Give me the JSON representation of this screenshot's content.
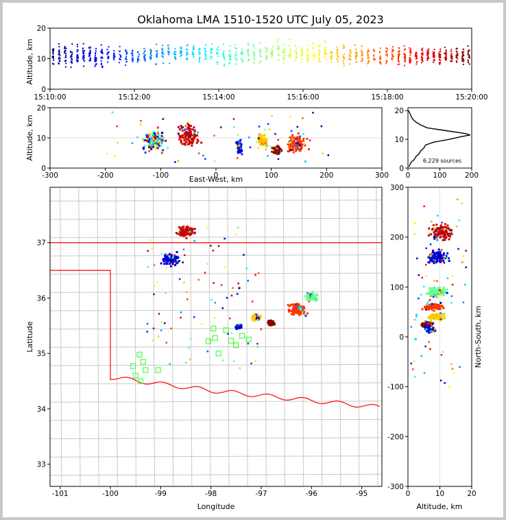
{
  "figure": {
    "title": "Oklahoma LMA 1510-1520 UTC July 05, 2023",
    "background": "#ffffff",
    "frame_color": "#c8c8c8"
  },
  "chart_data": [
    {
      "id": "time-height",
      "type": "scatter",
      "ylabel": "Altitude, km",
      "xlabel": "",
      "xlim": [
        "15:10:00",
        "15:20:00"
      ],
      "ylim": [
        0,
        20
      ],
      "x_ticks": [
        "15:10:00",
        "15:12:00",
        "15:14:00",
        "15:16:00",
        "15:18:00",
        "15:20:00"
      ],
      "y_ticks": [
        0,
        10,
        20
      ],
      "color_by": "time",
      "colormap": "jet",
      "series": [
        {
          "time_min_start": 0.0,
          "time_min_end": 1.3,
          "alt_center": 11,
          "alt_spread": 6,
          "density": "high"
        },
        {
          "time_min_start": 1.3,
          "time_min_end": 2.6,
          "alt_center": 11,
          "alt_spread": 5,
          "density": "medium"
        },
        {
          "time_min_start": 2.6,
          "time_min_end": 3.9,
          "alt_center": 12,
          "alt_spread": 5,
          "density": "medium"
        },
        {
          "time_min_start": 3.9,
          "time_min_end": 5.2,
          "alt_center": 11,
          "alt_spread": 6,
          "density": "medium"
        },
        {
          "time_min_start": 5.2,
          "time_min_end": 6.6,
          "alt_center": 12,
          "alt_spread": 6,
          "density": "medium"
        },
        {
          "time_min_start": 6.6,
          "time_min_end": 8.2,
          "alt_center": 11,
          "alt_spread": 5,
          "density": "medium"
        },
        {
          "time_min_start": 8.2,
          "time_min_end": 10.0,
          "alt_center": 11,
          "alt_spread": 5,
          "density": "high"
        }
      ]
    },
    {
      "id": "ew-height",
      "type": "scatter",
      "xlabel": "East-West, km",
      "ylabel": "Altitude, km",
      "xlim": [
        -300,
        300
      ],
      "ylim": [
        0,
        20
      ],
      "x_ticks": [
        -300,
        -200,
        -100,
        0,
        100,
        200,
        300
      ],
      "y_ticks": [
        0,
        10,
        20
      ],
      "clusters": [
        {
          "x": -110,
          "x_spread": 25,
          "alt": 9,
          "alt_spread": 5,
          "color": "mixed"
        },
        {
          "x": -50,
          "x_spread": 20,
          "alt": 11,
          "alt_spread": 5,
          "color": "#cc0000"
        },
        {
          "x": 42,
          "x_spread": 5,
          "alt": 7,
          "alt_spread": 3,
          "color": "#0000dd"
        },
        {
          "x": 85,
          "x_spread": 10,
          "alt": 9,
          "alt_spread": 3,
          "color": "#ffcc00"
        },
        {
          "x": 110,
          "x_spread": 8,
          "alt": 6,
          "alt_spread": 2,
          "color": "#880000"
        },
        {
          "x": 145,
          "x_spread": 20,
          "alt": 8,
          "alt_spread": 4,
          "color": "#ff3300"
        }
      ]
    },
    {
      "id": "altitude-histogram",
      "type": "line",
      "annotation": "6,229 sources",
      "xlim": [
        0,
        200
      ],
      "ylim": [
        0,
        21
      ],
      "x_ticks": [
        0,
        100,
        200
      ],
      "y_ticks": [
        0,
        10,
        20
      ],
      "profile": [
        {
          "alt": 0.5,
          "count": 3
        },
        {
          "alt": 2,
          "count": 10
        },
        {
          "alt": 3,
          "count": 20
        },
        {
          "alt": 4,
          "count": 25
        },
        {
          "alt": 5,
          "count": 35
        },
        {
          "alt": 6,
          "count": 40
        },
        {
          "alt": 7,
          "count": 50
        },
        {
          "alt": 8,
          "count": 55
        },
        {
          "alt": 9,
          "count": 80
        },
        {
          "alt": 10,
          "count": 130
        },
        {
          "alt": 11,
          "count": 170
        },
        {
          "alt": 11.5,
          "count": 195
        },
        {
          "alt": 12,
          "count": 180
        },
        {
          "alt": 13,
          "count": 120
        },
        {
          "alt": 14,
          "count": 60
        },
        {
          "alt": 15,
          "count": 40
        },
        {
          "alt": 16,
          "count": 25
        },
        {
          "alt": 17,
          "count": 15
        },
        {
          "alt": 18,
          "count": 10
        },
        {
          "alt": 19,
          "count": 6
        },
        {
          "alt": 20,
          "count": 2
        }
      ]
    },
    {
      "id": "plan-view",
      "type": "scatter",
      "xlabel": "Longitude",
      "ylabel": "Latitude",
      "xlim": [
        -101.2,
        -94.6
      ],
      "ylim": [
        32.6,
        38.0
      ],
      "x_ticks": [
        -101,
        -100,
        -99,
        -98,
        -97,
        -96,
        -95
      ],
      "y_ticks": [
        33,
        34,
        35,
        36,
        37
      ],
      "state_border_color": "#ff0000",
      "county_color": "#c8c8c8",
      "clusters": [
        {
          "lon": -98.5,
          "lat": 37.2,
          "spread": 0.15,
          "color": "#cc0000"
        },
        {
          "lon": -98.8,
          "lat": 36.7,
          "spread": 0.15,
          "color": "#0000dd"
        },
        {
          "lon": -97.45,
          "lat": 35.48,
          "spread": 0.05,
          "color": "#0000dd"
        },
        {
          "lon": -97.1,
          "lat": 35.65,
          "spread": 0.08,
          "color": "#ffcc00"
        },
        {
          "lon": -96.8,
          "lat": 35.55,
          "spread": 0.06,
          "color": "#880000"
        },
        {
          "lon": -96.3,
          "lat": 35.8,
          "spread": 0.15,
          "color": "#ff3300"
        },
        {
          "lon": -96.0,
          "lat": 36.02,
          "spread": 0.1,
          "color": "#66ff88"
        }
      ],
      "stations": [
        {
          "lon": -99.55,
          "lat": 34.77
        },
        {
          "lon": -99.5,
          "lat": 34.6
        },
        {
          "lon": -99.4,
          "lat": 34.5
        },
        {
          "lon": -99.35,
          "lat": 34.85
        },
        {
          "lon": -99.3,
          "lat": 34.7
        },
        {
          "lon": -99.42,
          "lat": 34.98
        },
        {
          "lon": -99.05,
          "lat": 34.7
        },
        {
          "lon": -98.05,
          "lat": 35.22
        },
        {
          "lon": -97.95,
          "lat": 35.45
        },
        {
          "lon": -97.92,
          "lat": 35.28
        },
        {
          "lon": -97.85,
          "lat": 35.0
        },
        {
          "lon": -97.7,
          "lat": 35.42
        },
        {
          "lon": -97.6,
          "lat": 35.23
        },
        {
          "lon": -97.5,
          "lat": 35.15
        },
        {
          "lon": -97.38,
          "lat": 35.32
        },
        {
          "lon": -97.25,
          "lat": 35.25
        }
      ]
    },
    {
      "id": "ns-height",
      "type": "scatter",
      "xlabel": "Altitude, km",
      "ylabel": "North-South, km",
      "xlim": [
        0,
        20
      ],
      "ylim": [
        -300,
        300
      ],
      "x_ticks": [
        0,
        10,
        20
      ],
      "y_ticks": [
        -300,
        -200,
        -100,
        0,
        100,
        200,
        300
      ],
      "clusters": [
        {
          "ns": 210,
          "ns_spread": 20,
          "alt": 11,
          "alt_spread": 6,
          "color": "#cc0000"
        },
        {
          "ns": 160,
          "ns_spread": 15,
          "alt": 9,
          "alt_spread": 5,
          "color": "#0000dd"
        },
        {
          "ns": 90,
          "ns_spread": 12,
          "alt": 9,
          "alt_spread": 5,
          "color": "#66ff88"
        },
        {
          "ns": 60,
          "ns_spread": 8,
          "alt": 8,
          "alt_spread": 5,
          "color": "#ff3300"
        },
        {
          "ns": 40,
          "ns_spread": 8,
          "alt": 9,
          "alt_spread": 4,
          "color": "#ffcc00"
        },
        {
          "ns": 25,
          "ns_spread": 6,
          "alt": 6,
          "alt_spread": 3,
          "color": "#880000"
        },
        {
          "ns": 15,
          "ns_spread": 8,
          "alt": 7,
          "alt_spread": 3,
          "color": "#0000dd"
        }
      ]
    }
  ]
}
